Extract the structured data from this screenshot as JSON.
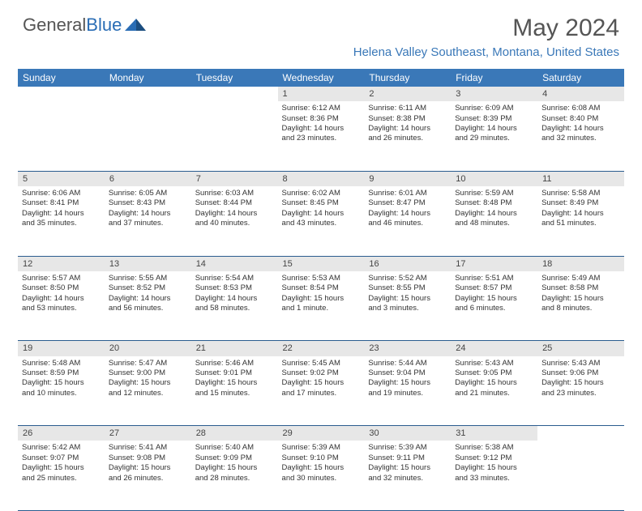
{
  "logo": {
    "word1": "General",
    "word2": "Blue"
  },
  "title": "May 2024",
  "location": "Helena Valley Southeast, Montana, United States",
  "header_bg": "#3a78b8",
  "border_color": "#2a5c8f",
  "daynum_bg": "#e7e7e7",
  "weekdays": [
    "Sunday",
    "Monday",
    "Tuesday",
    "Wednesday",
    "Thursday",
    "Friday",
    "Saturday"
  ],
  "weeks": [
    [
      null,
      null,
      null,
      {
        "n": "1",
        "sr": "6:12 AM",
        "ss": "8:36 PM",
        "dlh": 14,
        "dlm": 23
      },
      {
        "n": "2",
        "sr": "6:11 AM",
        "ss": "8:38 PM",
        "dlh": 14,
        "dlm": 26
      },
      {
        "n": "3",
        "sr": "6:09 AM",
        "ss": "8:39 PM",
        "dlh": 14,
        "dlm": 29
      },
      {
        "n": "4",
        "sr": "6:08 AM",
        "ss": "8:40 PM",
        "dlh": 14,
        "dlm": 32
      }
    ],
    [
      {
        "n": "5",
        "sr": "6:06 AM",
        "ss": "8:41 PM",
        "dlh": 14,
        "dlm": 35
      },
      {
        "n": "6",
        "sr": "6:05 AM",
        "ss": "8:43 PM",
        "dlh": 14,
        "dlm": 37
      },
      {
        "n": "7",
        "sr": "6:03 AM",
        "ss": "8:44 PM",
        "dlh": 14,
        "dlm": 40
      },
      {
        "n": "8",
        "sr": "6:02 AM",
        "ss": "8:45 PM",
        "dlh": 14,
        "dlm": 43
      },
      {
        "n": "9",
        "sr": "6:01 AM",
        "ss": "8:47 PM",
        "dlh": 14,
        "dlm": 46
      },
      {
        "n": "10",
        "sr": "5:59 AM",
        "ss": "8:48 PM",
        "dlh": 14,
        "dlm": 48
      },
      {
        "n": "11",
        "sr": "5:58 AM",
        "ss": "8:49 PM",
        "dlh": 14,
        "dlm": 51
      }
    ],
    [
      {
        "n": "12",
        "sr": "5:57 AM",
        "ss": "8:50 PM",
        "dlh": 14,
        "dlm": 53
      },
      {
        "n": "13",
        "sr": "5:55 AM",
        "ss": "8:52 PM",
        "dlh": 14,
        "dlm": 56
      },
      {
        "n": "14",
        "sr": "5:54 AM",
        "ss": "8:53 PM",
        "dlh": 14,
        "dlm": 58
      },
      {
        "n": "15",
        "sr": "5:53 AM",
        "ss": "8:54 PM",
        "dlh": 15,
        "dlm": 1
      },
      {
        "n": "16",
        "sr": "5:52 AM",
        "ss": "8:55 PM",
        "dlh": 15,
        "dlm": 3
      },
      {
        "n": "17",
        "sr": "5:51 AM",
        "ss": "8:57 PM",
        "dlh": 15,
        "dlm": 6
      },
      {
        "n": "18",
        "sr": "5:49 AM",
        "ss": "8:58 PM",
        "dlh": 15,
        "dlm": 8
      }
    ],
    [
      {
        "n": "19",
        "sr": "5:48 AM",
        "ss": "8:59 PM",
        "dlh": 15,
        "dlm": 10
      },
      {
        "n": "20",
        "sr": "5:47 AM",
        "ss": "9:00 PM",
        "dlh": 15,
        "dlm": 12
      },
      {
        "n": "21",
        "sr": "5:46 AM",
        "ss": "9:01 PM",
        "dlh": 15,
        "dlm": 15
      },
      {
        "n": "22",
        "sr": "5:45 AM",
        "ss": "9:02 PM",
        "dlh": 15,
        "dlm": 17
      },
      {
        "n": "23",
        "sr": "5:44 AM",
        "ss": "9:04 PM",
        "dlh": 15,
        "dlm": 19
      },
      {
        "n": "24",
        "sr": "5:43 AM",
        "ss": "9:05 PM",
        "dlh": 15,
        "dlm": 21
      },
      {
        "n": "25",
        "sr": "5:43 AM",
        "ss": "9:06 PM",
        "dlh": 15,
        "dlm": 23
      }
    ],
    [
      {
        "n": "26",
        "sr": "5:42 AM",
        "ss": "9:07 PM",
        "dlh": 15,
        "dlm": 25
      },
      {
        "n": "27",
        "sr": "5:41 AM",
        "ss": "9:08 PM",
        "dlh": 15,
        "dlm": 26
      },
      {
        "n": "28",
        "sr": "5:40 AM",
        "ss": "9:09 PM",
        "dlh": 15,
        "dlm": 28
      },
      {
        "n": "29",
        "sr": "5:39 AM",
        "ss": "9:10 PM",
        "dlh": 15,
        "dlm": 30
      },
      {
        "n": "30",
        "sr": "5:39 AM",
        "ss": "9:11 PM",
        "dlh": 15,
        "dlm": 32
      },
      {
        "n": "31",
        "sr": "5:38 AM",
        "ss": "9:12 PM",
        "dlh": 15,
        "dlm": 33
      },
      null
    ]
  ],
  "labels": {
    "sunrise": "Sunrise:",
    "sunset": "Sunset:",
    "daylight_prefix": "Daylight:",
    "hours_word": "hours",
    "and_word": "and",
    "minutes_word": "minutes.",
    "minute_word": "minute."
  }
}
